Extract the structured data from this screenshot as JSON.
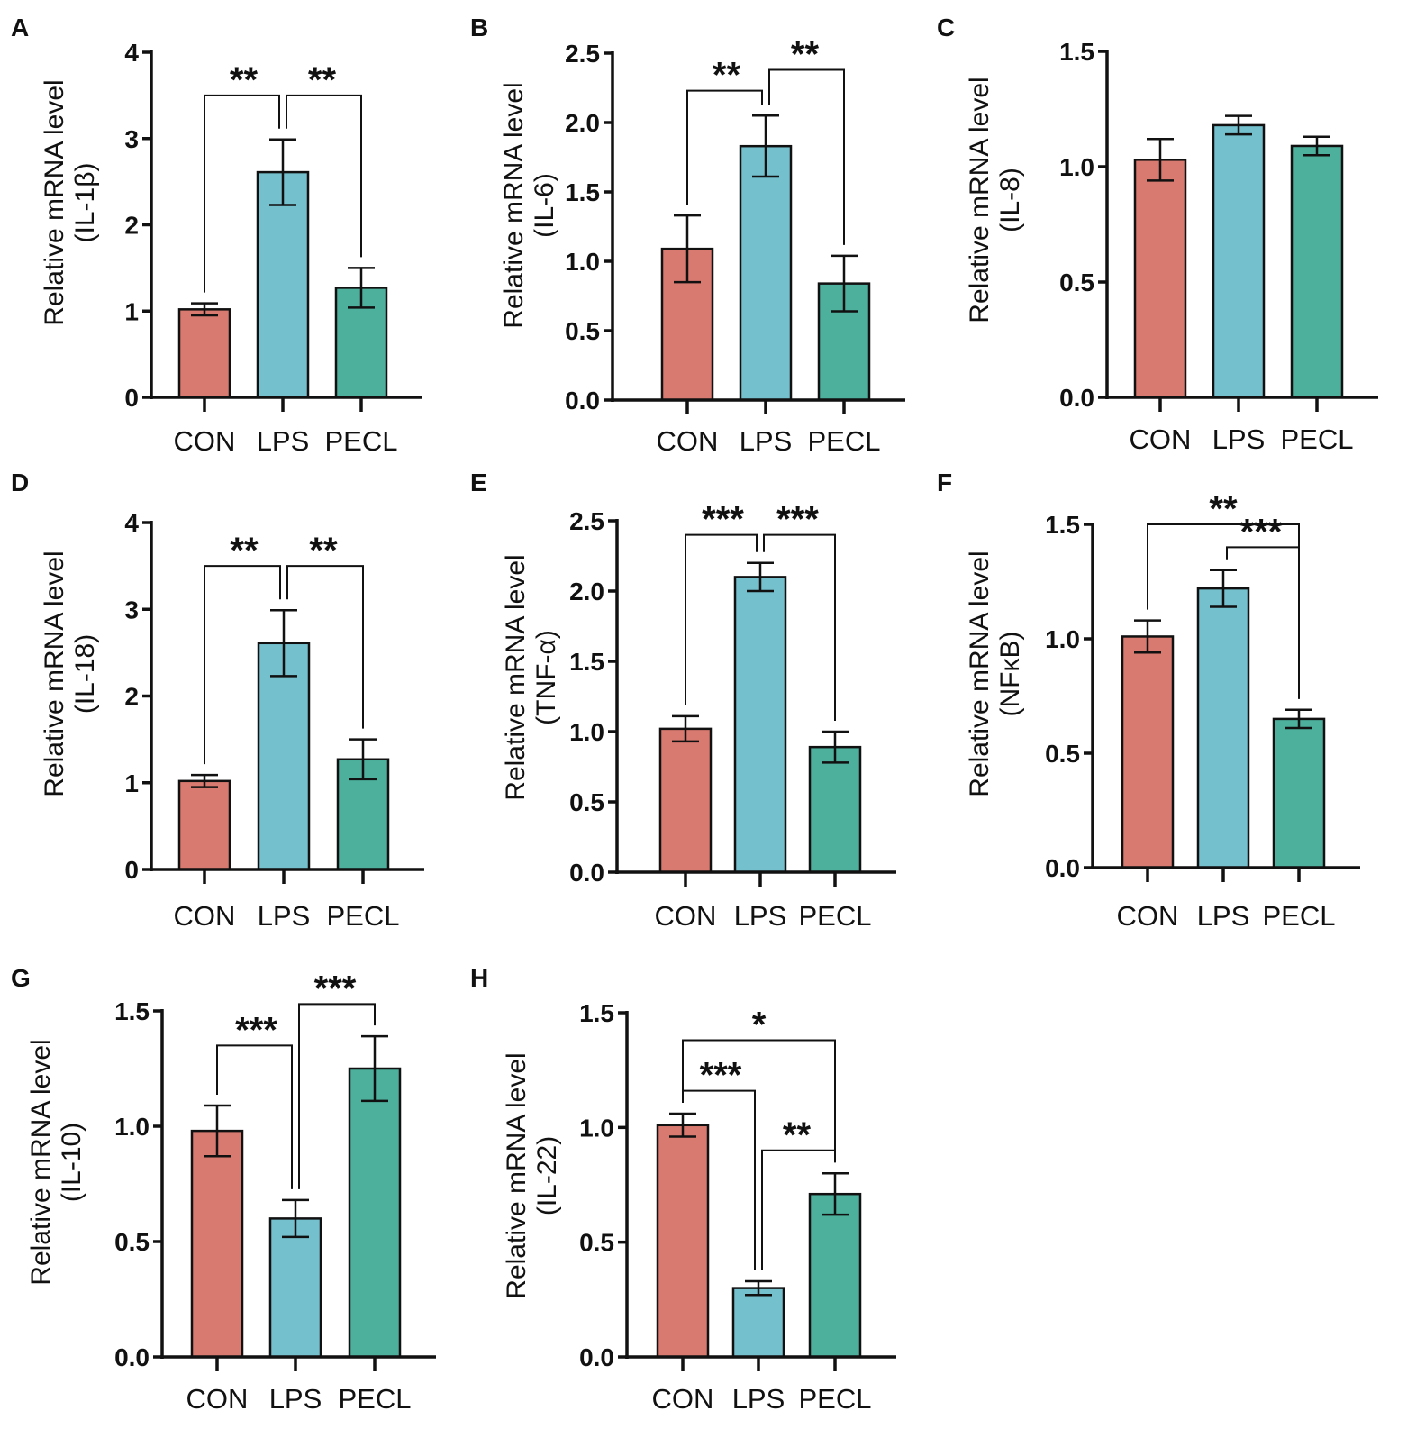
{
  "colors": {
    "con": "#d97a70",
    "lps": "#74c0cd",
    "pecl": "#4cb09c",
    "axis": "#111111"
  },
  "chart_data": [
    {
      "id": "A",
      "type": "bar",
      "letter": "A",
      "ylabel": "Relative mRNA level",
      "ylabel2": "(IL-1β)",
      "categories": [
        "CON",
        "LPS",
        "PECL"
      ],
      "values": [
        1.02,
        2.61,
        1.27
      ],
      "errors": [
        0.07,
        0.38,
        0.23
      ],
      "ylim": [
        0,
        4
      ],
      "yticks": [
        0,
        1,
        2,
        3,
        4
      ],
      "ytick_labels": [
        "0",
        "1",
        "2",
        "3",
        "4"
      ],
      "sig": [
        {
          "from": 0,
          "to": 1,
          "label": "**",
          "y": 3.5
        },
        {
          "from": 1,
          "to": 2,
          "label": "**",
          "y": 3.5
        }
      ]
    },
    {
      "id": "B",
      "type": "bar",
      "letter": "B",
      "ylabel": "Relative mRNA level",
      "ylabel2": "(IL-6)",
      "categories": [
        "CON",
        "LPS",
        "PECL"
      ],
      "values": [
        1.09,
        1.83,
        0.84
      ],
      "errors": [
        0.24,
        0.22,
        0.2
      ],
      "ylim": [
        0,
        2.5
      ],
      "yticks": [
        0,
        0.5,
        1,
        1.5,
        2,
        2.5
      ],
      "ytick_labels": [
        "0.0",
        "0.5",
        "1.0",
        "1.5",
        "2.0",
        "2.5"
      ],
      "sig": [
        {
          "from": 0,
          "to": 1,
          "label": "**",
          "y": 2.23
        },
        {
          "from": 1,
          "to": 2,
          "label": "**",
          "y": 2.38
        }
      ]
    },
    {
      "id": "C",
      "type": "bar",
      "letter": "C",
      "ylabel": "Relative mRNA level",
      "ylabel2": "(IL-8)",
      "categories": [
        "CON",
        "LPS",
        "PECL"
      ],
      "values": [
        1.03,
        1.18,
        1.09
      ],
      "errors": [
        0.09,
        0.04,
        0.04
      ],
      "ylim": [
        0,
        1.5
      ],
      "yticks": [
        0,
        0.5,
        1,
        1.5
      ],
      "ytick_labels": [
        "0.0",
        "0.5",
        "1.0",
        "1.5"
      ],
      "sig": []
    },
    {
      "id": "D",
      "type": "bar",
      "letter": "D",
      "ylabel": "Relative mRNA level",
      "ylabel2": "(IL-18)",
      "categories": [
        "CON",
        "LPS",
        "PECL"
      ],
      "values": [
        1.02,
        2.61,
        1.27
      ],
      "errors": [
        0.07,
        0.38,
        0.23
      ],
      "ylim": [
        0,
        4
      ],
      "yticks": [
        0,
        1,
        2,
        3,
        4
      ],
      "ytick_labels": [
        "0",
        "1",
        "2",
        "3",
        "4"
      ],
      "sig": [
        {
          "from": 0,
          "to": 1,
          "label": "**",
          "y": 3.5
        },
        {
          "from": 1,
          "to": 2,
          "label": "**",
          "y": 3.5
        }
      ]
    },
    {
      "id": "E",
      "type": "bar",
      "letter": "E",
      "ylabel": "Relative mRNA level",
      "ylabel2": "(TNF-α)",
      "categories": [
        "CON",
        "LPS",
        "PECL"
      ],
      "values": [
        1.02,
        2.1,
        0.89
      ],
      "errors": [
        0.09,
        0.1,
        0.11
      ],
      "ylim": [
        0,
        2.5
      ],
      "yticks": [
        0,
        0.5,
        1,
        1.5,
        2,
        2.5
      ],
      "ytick_labels": [
        "0.0",
        "0.5",
        "1.0",
        "1.5",
        "2.0",
        "2.5"
      ],
      "sig": [
        {
          "from": 0,
          "to": 1,
          "label": "***",
          "y": 2.4
        },
        {
          "from": 1,
          "to": 2,
          "label": "***",
          "y": 2.4
        }
      ]
    },
    {
      "id": "F",
      "type": "bar",
      "letter": "F",
      "ylabel": "Relative mRNA level",
      "ylabel2": "(NFκB)",
      "categories": [
        "CON",
        "LPS",
        "PECL"
      ],
      "values": [
        1.01,
        1.22,
        0.65
      ],
      "errors": [
        0.07,
        0.08,
        0.04
      ],
      "ylim": [
        0,
        1.5
      ],
      "yticks": [
        0,
        0.5,
        1,
        1.5
      ],
      "ytick_labels": [
        "0.0",
        "0.5",
        "1.0",
        "1.5"
      ],
      "sig": [
        {
          "from": 0,
          "to": 2,
          "label": "**",
          "y": 1.5
        },
        {
          "from": 1,
          "to": 2,
          "label": "***",
          "y": 1.4
        }
      ]
    },
    {
      "id": "G",
      "type": "bar",
      "letter": "G",
      "ylabel": "Relative mRNA level",
      "ylabel2": "(IL-10)",
      "categories": [
        "CON",
        "LPS",
        "PECL"
      ],
      "values": [
        0.98,
        0.6,
        1.25
      ],
      "errors": [
        0.11,
        0.08,
        0.14
      ],
      "ylim": [
        0,
        1.5
      ],
      "yticks": [
        0,
        0.5,
        1,
        1.5
      ],
      "ytick_labels": [
        "0.0",
        "0.5",
        "1.0",
        "1.5"
      ],
      "sig": [
        {
          "from": 0,
          "to": 1,
          "label": "***",
          "y": 1.35
        },
        {
          "from": 1,
          "to": 2,
          "label": "***",
          "y": 1.53
        }
      ]
    },
    {
      "id": "H",
      "type": "bar",
      "letter": "H",
      "ylabel": "Relative mRNA level",
      "ylabel2": "(IL-22)",
      "categories": [
        "CON",
        "LPS",
        "PECL"
      ],
      "values": [
        1.01,
        0.3,
        0.71
      ],
      "errors": [
        0.05,
        0.03,
        0.09
      ],
      "ylim": [
        0,
        1.5
      ],
      "yticks": [
        0,
        0.5,
        1,
        1.5
      ],
      "ytick_labels": [
        "0.0",
        "0.5",
        "1.0",
        "1.5"
      ],
      "sig": [
        {
          "from": 0,
          "to": 2,
          "label": "*",
          "y": 1.38
        },
        {
          "from": 0,
          "to": 1,
          "label": "***",
          "y": 1.16
        },
        {
          "from": 1,
          "to": 2,
          "label": "**",
          "y": 0.9
        }
      ]
    }
  ]
}
